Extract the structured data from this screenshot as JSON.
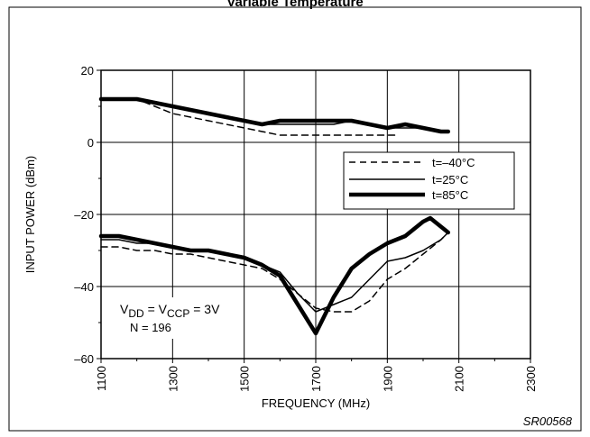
{
  "chart_data": {
    "type": "line",
    "title": "Variable Temperature",
    "xlabel": "FREQUENCY (MHz)",
    "ylabel": "INPUT POWER (dBm)",
    "xlim": [
      1100,
      2300
    ],
    "ylim": [
      -60,
      20
    ],
    "xticks": [
      1100,
      1300,
      1500,
      1700,
      1900,
      2100,
      2300
    ],
    "yticks": [
      -60,
      -40,
      -20,
      0,
      20
    ],
    "grid": true,
    "legend_position": "right",
    "annotation": {
      "line1_main": "V",
      "line1_sub1": "DD",
      "line1_eq": " = V",
      "line1_sub2": "CCP",
      "line1_tail": " = 3V",
      "line2": "N = 196"
    },
    "code_label": "SR00568",
    "series": [
      {
        "name": "t=–40°C",
        "style": "dashed",
        "segments": [
          {
            "x": [
              1100,
              1150,
              1200,
              1250,
              1300,
              1350,
              1400,
              1450,
              1500,
              1550,
              1600,
              1650,
              1700,
              1750,
              1800,
              1850,
              1900,
              1930
            ],
            "y": [
              12,
              12,
              12,
              10,
              8,
              7,
              6,
              5,
              4,
              3,
              2,
              2,
              2,
              2,
              2,
              2,
              2,
              2
            ]
          },
          {
            "x": [
              1100,
              1150,
              1200,
              1250,
              1300,
              1350,
              1400,
              1450,
              1500,
              1550,
              1600,
              1650,
              1700,
              1750,
              1800,
              1850,
              1900,
              1950,
              2000,
              2050,
              2070
            ],
            "y": [
              -29,
              -29,
              -30,
              -30,
              -31,
              -31,
              -32,
              -33,
              -34,
              -35,
              -38,
              -42,
              -46,
              -47,
              -47,
              -44,
              -38,
              -35,
              -31,
              -27,
              -25
            ]
          }
        ]
      },
      {
        "name": "t=25°C",
        "style": "thin",
        "segments": [
          {
            "x": [
              1100,
              1150,
              1200,
              1250,
              1300,
              1350,
              1400,
              1450,
              1500,
              1550,
              1600,
              1650,
              1700,
              1750,
              1800,
              1850,
              1900,
              1950,
              2000,
              2050,
              2070
            ],
            "y": [
              12,
              12,
              12,
              11,
              10,
              9,
              8,
              7,
              6,
              5,
              5,
              5,
              5,
              5,
              6,
              5,
              4,
              4,
              4,
              3,
              3
            ]
          },
          {
            "x": [
              1100,
              1150,
              1200,
              1250,
              1300,
              1350,
              1400,
              1450,
              1500,
              1550,
              1600,
              1650,
              1700,
              1750,
              1800,
              1850,
              1900,
              1950,
              2000,
              2050,
              2070
            ],
            "y": [
              -27,
              -27,
              -28,
              -28,
              -29,
              -30,
              -30,
              -31,
              -32,
              -34,
              -36,
              -42,
              -47,
              -45,
              -43,
              -38,
              -33,
              -32,
              -30,
              -27,
              -25
            ]
          }
        ]
      },
      {
        "name": "t=85°C",
        "style": "thick",
        "segments": [
          {
            "x": [
              1100,
              1150,
              1200,
              1250,
              1300,
              1350,
              1400,
              1450,
              1500,
              1550,
              1600,
              1650,
              1700,
              1750,
              1800,
              1850,
              1900,
              1950,
              2000,
              2050,
              2070
            ],
            "y": [
              12,
              12,
              12,
              11,
              10,
              9,
              8,
              7,
              6,
              5,
              6,
              6,
              6,
              6,
              6,
              5,
              4,
              5,
              4,
              3,
              3
            ]
          },
          {
            "x": [
              1100,
              1150,
              1200,
              1250,
              1300,
              1350,
              1400,
              1450,
              1500,
              1550,
              1600,
              1650,
              1700,
              1750,
              1800,
              1850,
              1900,
              1950,
              2000,
              2020,
              2070
            ],
            "y": [
              -26,
              -26,
              -27,
              -28,
              -29,
              -30,
              -30,
              -31,
              -32,
              -34,
              -37,
              -45,
              -53,
              -43,
              -35,
              -31,
              -28,
              -26,
              -22,
              -21,
              -25
            ]
          }
        ]
      }
    ]
  }
}
